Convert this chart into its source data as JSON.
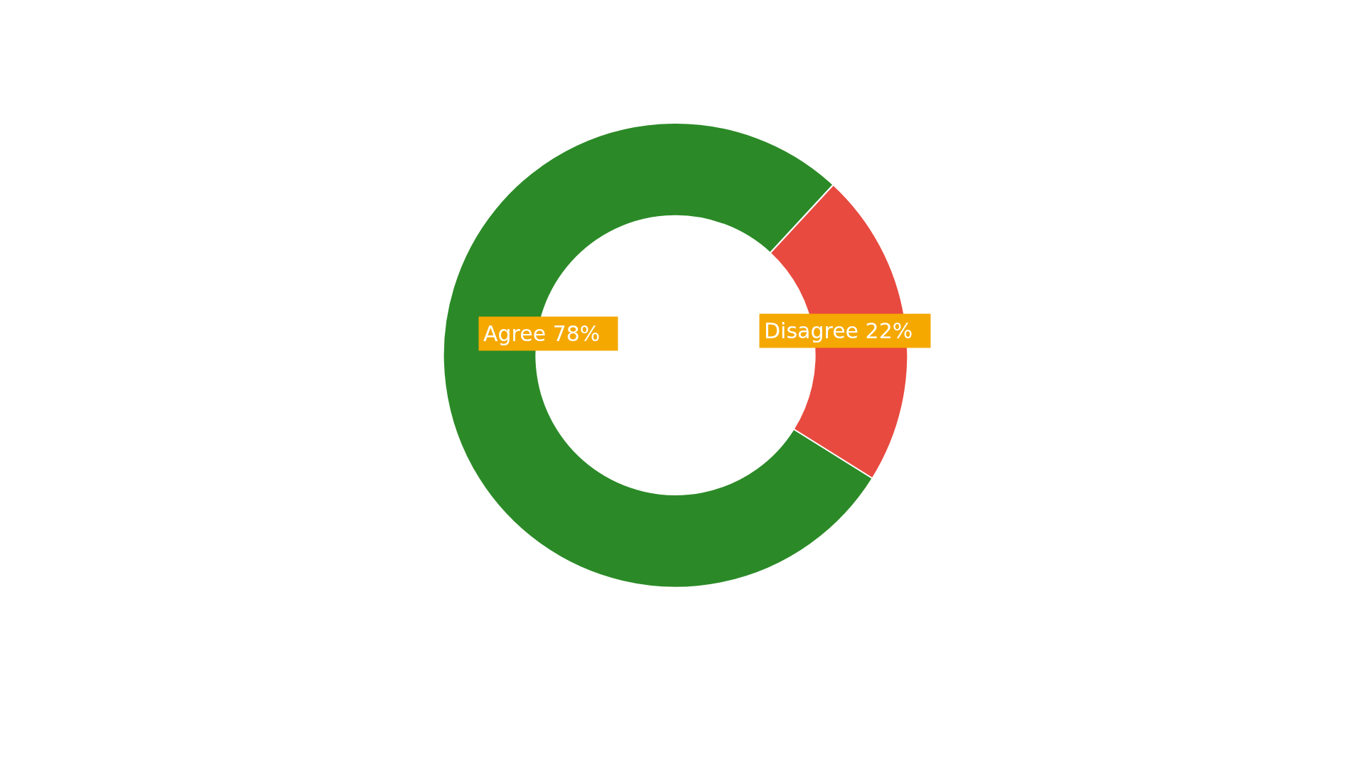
{
  "chart_data": {
    "type": "donut",
    "categories": [
      "Agree",
      "Disagree"
    ],
    "values": [
      78,
      22
    ],
    "colors": [
      "#2b8a27",
      "#e84a3f"
    ],
    "value_labels": [
      "78%",
      "22%"
    ],
    "legend": false
  }
}
